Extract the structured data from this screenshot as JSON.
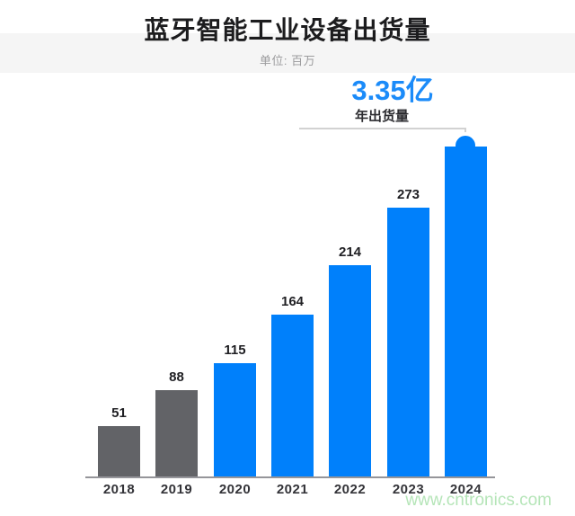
{
  "header": {
    "title": "蓝牙智能工业设备出货量",
    "subtitle": "单位: 百万"
  },
  "callout": {
    "headline": "3.35亿",
    "label": "年出货量"
  },
  "watermark": "www.cntronics.com",
  "colors": {
    "bar_blue": "#0080fb",
    "bar_gray": "#626367",
    "headline_blue": "#1b8bf9",
    "band_gray": "#f5f5f5",
    "axis_gray": "#95959a",
    "callout_line": "#d2d2d2",
    "watermark_green": "#b5e5b8"
  },
  "chart_data": {
    "type": "bar",
    "title": "蓝牙智能工业设备出货量",
    "unit_label": "单位: 百万",
    "categories": [
      "2018",
      "2019",
      "2020",
      "2021",
      "2022",
      "2023",
      "2024"
    ],
    "values": [
      51,
      88,
      115,
      164,
      214,
      273,
      335
    ],
    "value_labels": [
      "51",
      "88",
      "115",
      "164",
      "214",
      "273",
      null
    ],
    "bar_colors": [
      "gray",
      "gray",
      "blue",
      "blue",
      "blue",
      "blue",
      "blue"
    ],
    "highlight": {
      "category": "2024",
      "value_display": "3.35亿",
      "annotation": "年出货量",
      "marker": "circle"
    },
    "xlabel": "",
    "ylabel": "",
    "ylim": [
      0,
      360
    ],
    "grid": false,
    "legend": false
  }
}
